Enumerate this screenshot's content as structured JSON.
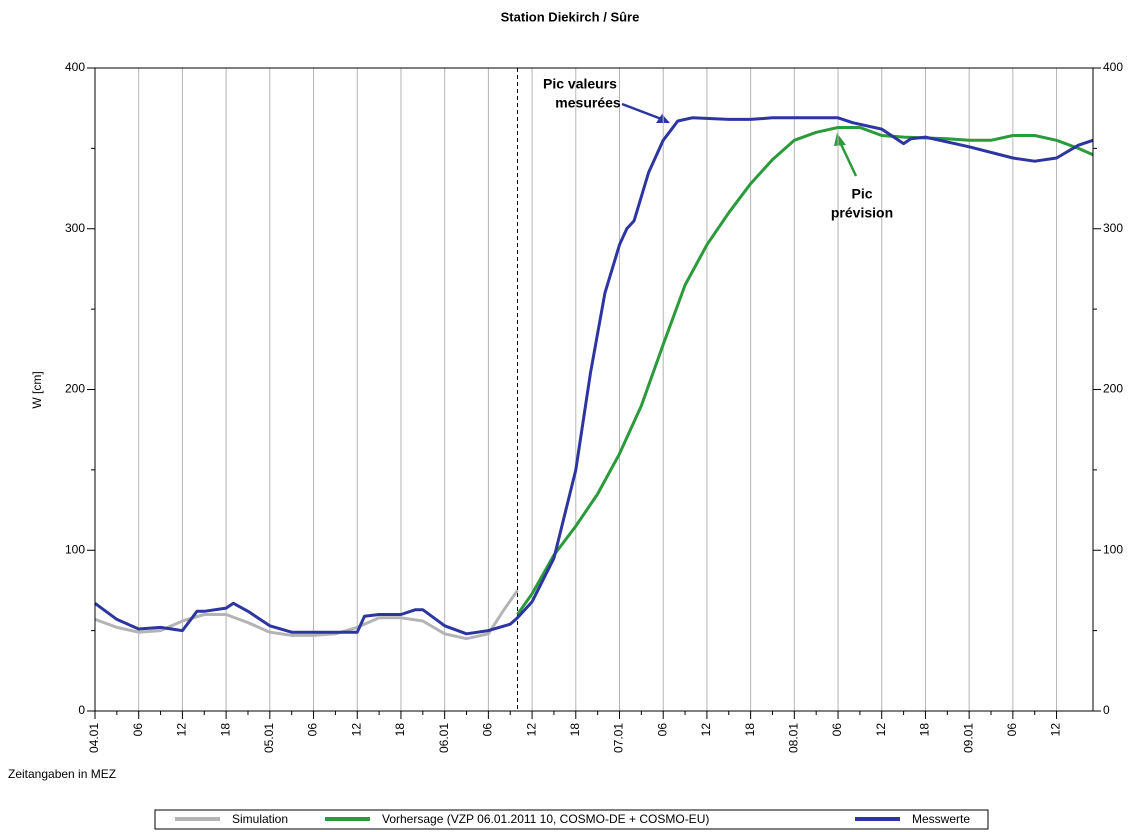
{
  "chart_data": {
    "type": "line",
    "title": "Station Diekirch / Sûre",
    "y_label": "W [cm]",
    "x_label": "Zeitangaben in MEZ",
    "xlim": [
      0,
      137
    ],
    "ylim": [
      0,
      400
    ],
    "yticks": [
      0,
      100,
      200,
      300,
      400
    ],
    "xticks": [
      {
        "value": 0,
        "label": "04.01"
      },
      {
        "value": 6,
        "label": "06"
      },
      {
        "value": 12,
        "label": "12"
      },
      {
        "value": 18,
        "label": "18"
      },
      {
        "value": 24,
        "label": "05.01"
      },
      {
        "value": 30,
        "label": "06"
      },
      {
        "value": 36,
        "label": "12"
      },
      {
        "value": 42,
        "label": "18"
      },
      {
        "value": 48,
        "label": "06.01"
      },
      {
        "value": 54,
        "label": "06"
      },
      {
        "value": 60,
        "label": "12"
      },
      {
        "value": 66,
        "label": "18"
      },
      {
        "value": 72,
        "label": "07.01"
      },
      {
        "value": 78,
        "label": "06"
      },
      {
        "value": 84,
        "label": "12"
      },
      {
        "value": 90,
        "label": "18"
      },
      {
        "value": 96,
        "label": "08.01"
      },
      {
        "value": 102,
        "label": "06"
      },
      {
        "value": 108,
        "label": "12"
      },
      {
        "value": 114,
        "label": "18"
      },
      {
        "value": 120,
        "label": "09.01"
      },
      {
        "value": 126,
        "label": "06"
      },
      {
        "value": 132,
        "label": "12"
      }
    ],
    "grid": true,
    "forecast_start": 58,
    "series": [
      {
        "name": "Simulation",
        "color": "#b4b4b4",
        "x": [
          0,
          3,
          6,
          9,
          12,
          15,
          18,
          21,
          24,
          27,
          30,
          33,
          36,
          39,
          42,
          45,
          48,
          51,
          54,
          56,
          58
        ],
        "values": [
          57,
          52,
          49,
          50,
          56,
          60,
          60,
          55,
          49,
          47,
          47,
          48,
          52,
          58,
          58,
          56,
          48,
          45,
          48,
          62,
          75
        ]
      },
      {
        "name": "Vorhersage (VZP 06.01.2011 10, COSMO-DE + COSMO-EU)",
        "color": "#2a9a3a",
        "x": [
          58,
          60,
          63,
          66,
          69,
          72,
          75,
          78,
          81,
          84,
          87,
          90,
          93,
          96,
          99,
          102,
          105,
          108,
          111,
          117,
          120,
          123,
          126,
          129,
          132,
          135,
          137
        ],
        "values": [
          60,
          73,
          97,
          115,
          135,
          160,
          190,
          228,
          265,
          290,
          310,
          328,
          343,
          355,
          360,
          363,
          363,
          358,
          357,
          356,
          355,
          355,
          358,
          358,
          355,
          350,
          346
        ]
      },
      {
        "name": "Messwerte",
        "color": "#2d35a0",
        "x": [
          0,
          3,
          6,
          9,
          12,
          14,
          15,
          18,
          19,
          21,
          24,
          27,
          30,
          33,
          36,
          37,
          39,
          42,
          44,
          45,
          48,
          51,
          54,
          57,
          58,
          60,
          63,
          66,
          68,
          70,
          72,
          73,
          74,
          76,
          78,
          80,
          82,
          87,
          90,
          93,
          102,
          104,
          108,
          111,
          112,
          114,
          120,
          126,
          129,
          132,
          135,
          137
        ],
        "values": [
          67,
          57,
          51,
          52,
          50,
          62,
          62,
          64,
          67,
          62,
          53,
          49,
          49,
          49,
          49,
          59,
          60,
          60,
          63,
          63,
          53,
          48,
          50,
          54,
          58,
          68,
          95,
          150,
          210,
          260,
          290,
          300,
          305,
          335,
          355,
          367,
          369,
          368,
          368,
          369,
          369,
          366,
          362,
          353,
          356,
          357,
          351,
          344,
          342,
          344,
          352,
          355
        ]
      }
    ],
    "annotations": [
      {
        "lines": [
          "Pic valeurs",
          "mesurées"
        ],
        "color": "#2d35a0"
      },
      {
        "lines": [
          "Pic",
          "prévision"
        ],
        "color": "#2a9a3a"
      }
    ]
  }
}
